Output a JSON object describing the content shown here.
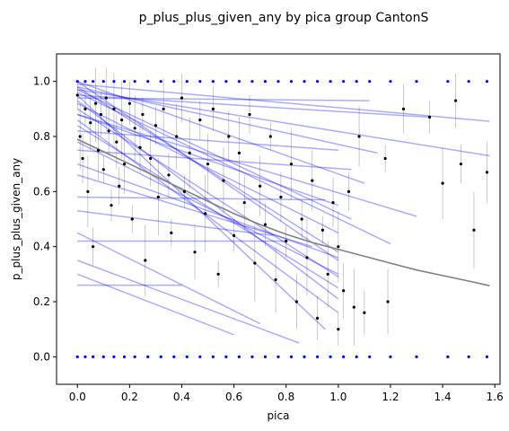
{
  "chart_data": {
    "type": "scatter",
    "title": "p_plus_plus_given_any by pica group CantonS",
    "xlabel": "pica",
    "ylabel": "p_plus_plus_given_any",
    "xlim": [
      -0.08,
      1.62
    ],
    "ylim": [
      -0.1,
      1.1
    ],
    "xticks": [
      0.0,
      0.2,
      0.4,
      0.6,
      0.8,
      1.0,
      1.2,
      1.4,
      1.6
    ],
    "xtick_labels": [
      "0.0",
      "0.2",
      "0.4",
      "0.6",
      "0.8",
      "1.0",
      "1.2",
      "1.4",
      "1.6"
    ],
    "yticks": [
      0.0,
      0.2,
      0.4,
      0.6,
      0.8,
      1.0
    ],
    "ytick_labels": [
      "0.0",
      "0.2",
      "0.4",
      "0.6",
      "0.8",
      "1.0"
    ],
    "grid": false,
    "colors": {
      "points": "#000000",
      "error_bars": "#808080",
      "boundary_points": "#0000ff",
      "individual_fits": "#0000ff",
      "overall_fit": "#808080"
    },
    "overall_fit": {
      "x": [
        0.0,
        0.1,
        0.2,
        0.3,
        0.4,
        0.5,
        0.6,
        0.7,
        0.8,
        0.9,
        1.0,
        1.1,
        1.2,
        1.3,
        1.4,
        1.5,
        1.58
      ],
      "y": [
        0.79,
        0.745,
        0.7,
        0.655,
        0.61,
        0.565,
        0.52,
        0.48,
        0.445,
        0.415,
        0.39,
        0.365,
        0.34,
        0.315,
        0.295,
        0.275,
        0.258
      ]
    },
    "individual_fits": [
      {
        "x": [
          0.0,
          1.58
        ],
        "y": [
          0.99,
          0.855
        ]
      },
      {
        "x": [
          0.0,
          1.58
        ],
        "y": [
          0.97,
          0.73
        ]
      },
      {
        "x": [
          0.0,
          1.35
        ],
        "y": [
          0.95,
          0.87
        ]
      },
      {
        "x": [
          0.0,
          1.12
        ],
        "y": [
          0.94,
          0.93
        ]
      },
      {
        "x": [
          0.0,
          1.3
        ],
        "y": [
          0.88,
          0.51
        ]
      },
      {
        "x": [
          0.0,
          1.2
        ],
        "y": [
          0.96,
          0.41
        ]
      },
      {
        "x": [
          0.0,
          1.1
        ],
        "y": [
          1.0,
          0.63
        ]
      },
      {
        "x": [
          0.0,
          1.15
        ],
        "y": [
          0.98,
          0.74
        ]
      },
      {
        "x": [
          0.0,
          1.05
        ],
        "y": [
          0.75,
          0.68
        ]
      },
      {
        "x": [
          0.0,
          1.0
        ],
        "y": [
          0.82,
          0.75
        ]
      },
      {
        "x": [
          0.0,
          0.95
        ],
        "y": [
          0.58,
          0.57
        ]
      },
      {
        "x": [
          0.0,
          0.8
        ],
        "y": [
          0.42,
          0.42
        ]
      },
      {
        "x": [
          0.0,
          0.75
        ],
        "y": [
          0.53,
          0.44
        ]
      },
      {
        "x": [
          0.0,
          0.4
        ],
        "y": [
          0.26,
          0.26
        ]
      },
      {
        "x": [
          0.0,
          0.7
        ],
        "y": [
          0.45,
          0.12
        ]
      },
      {
        "x": [
          0.0,
          0.85
        ],
        "y": [
          0.35,
          0.05
        ]
      },
      {
        "x": [
          0.0,
          0.6
        ],
        "y": [
          0.3,
          0.08
        ]
      },
      {
        "x": [
          0.0,
          1.0
        ],
        "y": [
          0.93,
          0.21
        ]
      },
      {
        "x": [
          0.0,
          1.0
        ],
        "y": [
          0.9,
          0.29
        ]
      },
      {
        "x": [
          0.0,
          1.0
        ],
        "y": [
          1.0,
          0.35
        ]
      },
      {
        "x": [
          0.0,
          1.0
        ],
        "y": [
          0.98,
          0.38
        ]
      },
      {
        "x": [
          0.0,
          1.0
        ],
        "y": [
          0.92,
          0.45
        ]
      },
      {
        "x": [
          0.0,
          1.05
        ],
        "y": [
          0.97,
          0.5
        ]
      },
      {
        "x": [
          0.0,
          1.0
        ],
        "y": [
          0.88,
          0.55
        ]
      },
      {
        "x": [
          0.0,
          1.0
        ],
        "y": [
          0.86,
          0.16
        ]
      },
      {
        "x": [
          0.0,
          0.95
        ],
        "y": [
          0.95,
          0.1
        ]
      },
      {
        "x": [
          0.0,
          1.0
        ],
        "y": [
          0.84,
          0.25
        ]
      },
      {
        "x": [
          0.0,
          1.0
        ],
        "y": [
          0.78,
          0.3
        ]
      },
      {
        "x": [
          0.0,
          1.0
        ],
        "y": [
          0.7,
          0.36
        ]
      },
      {
        "x": [
          0.0,
          0.9
        ],
        "y": [
          0.66,
          0.4
        ]
      }
    ],
    "points": [
      {
        "x": 0.0,
        "y": 0.95
      },
      {
        "x": 0.01,
        "y": 0.8
      },
      {
        "x": 0.02,
        "y": 0.72
      },
      {
        "x": 0.03,
        "y": 0.9
      },
      {
        "x": 0.04,
        "y": 0.6
      },
      {
        "x": 0.05,
        "y": 0.85
      },
      {
        "x": 0.06,
        "y": 0.4
      },
      {
        "x": 0.07,
        "y": 0.92
      },
      {
        "x": 0.08,
        "y": 0.75
      },
      {
        "x": 0.09,
        "y": 0.88
      },
      {
        "x": 0.1,
        "y": 0.68
      },
      {
        "x": 0.11,
        "y": 0.94
      },
      {
        "x": 0.12,
        "y": 0.82
      },
      {
        "x": 0.13,
        "y": 0.55
      },
      {
        "x": 0.14,
        "y": 0.9
      },
      {
        "x": 0.15,
        "y": 0.78
      },
      {
        "x": 0.16,
        "y": 0.62
      },
      {
        "x": 0.17,
        "y": 0.86
      },
      {
        "x": 0.18,
        "y": 0.7
      },
      {
        "x": 0.2,
        "y": 0.92
      },
      {
        "x": 0.21,
        "y": 0.5
      },
      {
        "x": 0.22,
        "y": 0.83
      },
      {
        "x": 0.24,
        "y": 0.76
      },
      {
        "x": 0.25,
        "y": 0.88
      },
      {
        "x": 0.26,
        "y": 0.35
      },
      {
        "x": 0.28,
        "y": 0.72
      },
      {
        "x": 0.3,
        "y": 0.84
      },
      {
        "x": 0.31,
        "y": 0.58
      },
      {
        "x": 0.33,
        "y": 0.9
      },
      {
        "x": 0.35,
        "y": 0.66
      },
      {
        "x": 0.36,
        "y": 0.45
      },
      {
        "x": 0.38,
        "y": 0.8
      },
      {
        "x": 0.4,
        "y": 0.94
      },
      {
        "x": 0.41,
        "y": 0.6
      },
      {
        "x": 0.43,
        "y": 0.74
      },
      {
        "x": 0.45,
        "y": 0.38
      },
      {
        "x": 0.47,
        "y": 0.86
      },
      {
        "x": 0.49,
        "y": 0.52
      },
      {
        "x": 0.5,
        "y": 0.7
      },
      {
        "x": 0.52,
        "y": 0.9
      },
      {
        "x": 0.54,
        "y": 0.3
      },
      {
        "x": 0.56,
        "y": 0.64
      },
      {
        "x": 0.58,
        "y": 0.8
      },
      {
        "x": 0.6,
        "y": 0.44
      },
      {
        "x": 0.62,
        "y": 0.74
      },
      {
        "x": 0.64,
        "y": 0.56
      },
      {
        "x": 0.66,
        "y": 0.88
      },
      {
        "x": 0.68,
        "y": 0.34
      },
      {
        "x": 0.7,
        "y": 0.62
      },
      {
        "x": 0.72,
        "y": 0.48
      },
      {
        "x": 0.74,
        "y": 0.8
      },
      {
        "x": 0.76,
        "y": 0.28
      },
      {
        "x": 0.78,
        "y": 0.58
      },
      {
        "x": 0.8,
        "y": 0.42
      },
      {
        "x": 0.82,
        "y": 0.7
      },
      {
        "x": 0.84,
        "y": 0.2
      },
      {
        "x": 0.86,
        "y": 0.5
      },
      {
        "x": 0.88,
        "y": 0.36
      },
      {
        "x": 0.9,
        "y": 0.64
      },
      {
        "x": 0.92,
        "y": 0.14
      },
      {
        "x": 0.94,
        "y": 0.46
      },
      {
        "x": 0.96,
        "y": 0.3
      },
      {
        "x": 0.98,
        "y": 0.56
      },
      {
        "x": 1.0,
        "y": 0.1
      },
      {
        "x": 1.0,
        "y": 0.4
      },
      {
        "x": 1.02,
        "y": 0.24
      },
      {
        "x": 1.04,
        "y": 0.6
      },
      {
        "x": 1.06,
        "y": 0.18
      },
      {
        "x": 1.08,
        "y": 0.8
      },
      {
        "x": 1.1,
        "y": 0.16
      },
      {
        "x": 1.18,
        "y": 0.72
      },
      {
        "x": 1.19,
        "y": 0.2
      },
      {
        "x": 1.25,
        "y": 0.9
      },
      {
        "x": 1.35,
        "y": 0.87
      },
      {
        "x": 1.4,
        "y": 0.63
      },
      {
        "x": 1.45,
        "y": 0.93
      },
      {
        "x": 1.47,
        "y": 0.7
      },
      {
        "x": 1.52,
        "y": 0.46
      },
      {
        "x": 1.57,
        "y": 0.67
      }
    ],
    "boundary_points_x": [
      0.0,
      0.03,
      0.06,
      0.1,
      0.14,
      0.18,
      0.22,
      0.27,
      0.32,
      0.37,
      0.42,
      0.47,
      0.52,
      0.57,
      0.62,
      0.67,
      0.72,
      0.77,
      0.82,
      0.87,
      0.92,
      0.97,
      1.02,
      1.07,
      1.12,
      1.2,
      1.3,
      1.42,
      1.5,
      1.57
    ],
    "boundary_points_y": [
      0.0,
      1.0
    ]
  }
}
